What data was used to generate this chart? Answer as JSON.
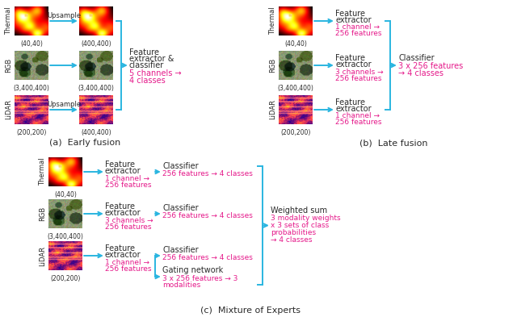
{
  "bg": "#ffffff",
  "arrow_color": "#2AB5E0",
  "pink": "#E5198A",
  "dark": "#2a2a2a",
  "panel_a": {
    "caption": "(a)  Early fusion",
    "rows": [
      {
        "label": "Thermal",
        "s1": "(40,40)",
        "s2": "(400,400)",
        "upsample": true
      },
      {
        "label": "RGB",
        "s1": "(3,400,400)",
        "s2": "(3,400,400)",
        "upsample": false
      },
      {
        "label": "LiDAR",
        "s1": "(200,200)",
        "s2": "(400,400)",
        "upsample": true
      }
    ],
    "fe_text": [
      "Feature",
      "extractor &",
      "classifier"
    ],
    "fe_pink": [
      "5 channels →",
      "4 classes"
    ]
  },
  "panel_b": {
    "caption": "(b)  Late fusion",
    "rows": [
      {
        "label": "Thermal",
        "s1": "(40,40)",
        "fe_pink": [
          "1 channel →",
          "256 features"
        ]
      },
      {
        "label": "RGB",
        "s1": "(3,400,400)",
        "fe_pink": [
          "3 channels →",
          "256 features"
        ]
      },
      {
        "label": "LiDAR",
        "s1": "(200,200)",
        "fe_pink": [
          "1 channel →",
          "256 features"
        ]
      }
    ],
    "cls_text": "Classifier",
    "cls_pink": [
      "3 x 256 features",
      "→ 4 classes"
    ]
  },
  "panel_c": {
    "caption": "(c)  Mixture of Experts",
    "rows": [
      {
        "label": "Thermal",
        "s1": "(40,40)",
        "fe_pink": [
          "1 channel →",
          "256 features"
        ],
        "cls_pink": "256 features → 4 classes"
      },
      {
        "label": "RGB",
        "s1": "(3,400,400)",
        "fe_pink": [
          "3 channels →",
          "256 features"
        ],
        "cls_pink": "256 features → 4 classes"
      },
      {
        "label": "LiDAR",
        "s1": "(200,200)",
        "fe_pink": [
          "1 channel →",
          "256 features"
        ],
        "cls_pink": "256 features → 4 classes"
      }
    ],
    "gate_text": "Gating network",
    "gate_pink": [
      "3 x 256 features → 3",
      "modalities"
    ],
    "ws_text": "Weighted sum",
    "ws_pink": [
      "3 modality weights",
      "x 3 sets of class",
      "probabilities",
      "→ 4 classes"
    ]
  }
}
